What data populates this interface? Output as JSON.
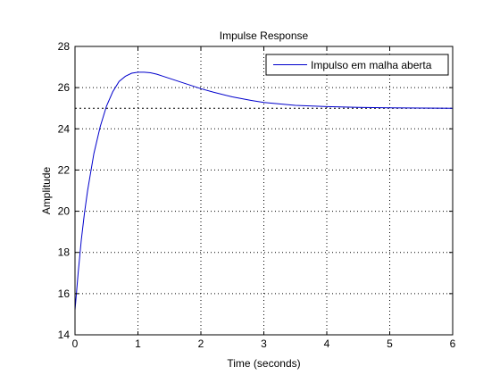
{
  "chart_data": {
    "type": "line",
    "title": "Impulse Response",
    "xlabel": "Time (seconds)",
    "ylabel": "Amplitude",
    "xlim": [
      0,
      6
    ],
    "ylim": [
      14,
      28
    ],
    "xticks": [
      0,
      1,
      2,
      3,
      4,
      5,
      6
    ],
    "yticks": [
      14,
      16,
      18,
      20,
      22,
      24,
      26,
      28
    ],
    "grid": true,
    "legend_position": "top-right",
    "colors": {
      "series": "#0000cc",
      "axis": "#000000",
      "grid": "#000000",
      "background": "#ffffff"
    },
    "reference_line": {
      "y": 25,
      "style": "dotted"
    },
    "series": [
      {
        "name": "Impulso em malha aberta",
        "x": [
          0,
          0.05,
          0.1,
          0.15,
          0.2,
          0.3,
          0.4,
          0.5,
          0.6,
          0.7,
          0.8,
          0.9,
          1.0,
          1.1,
          1.2,
          1.3,
          1.4,
          1.6,
          1.8,
          2.0,
          2.2,
          2.5,
          2.8,
          3.0,
          3.5,
          4.0,
          4.5,
          5.0,
          5.5,
          6.0
        ],
        "y": [
          15.2,
          17.0,
          18.6,
          19.9,
          21.0,
          22.8,
          24.1,
          25.1,
          25.8,
          26.3,
          26.55,
          26.7,
          26.75,
          26.75,
          26.72,
          26.65,
          26.55,
          26.35,
          26.15,
          25.95,
          25.78,
          25.55,
          25.38,
          25.28,
          25.14,
          25.08,
          25.04,
          25.02,
          25.01,
          25.0
        ]
      }
    ]
  }
}
